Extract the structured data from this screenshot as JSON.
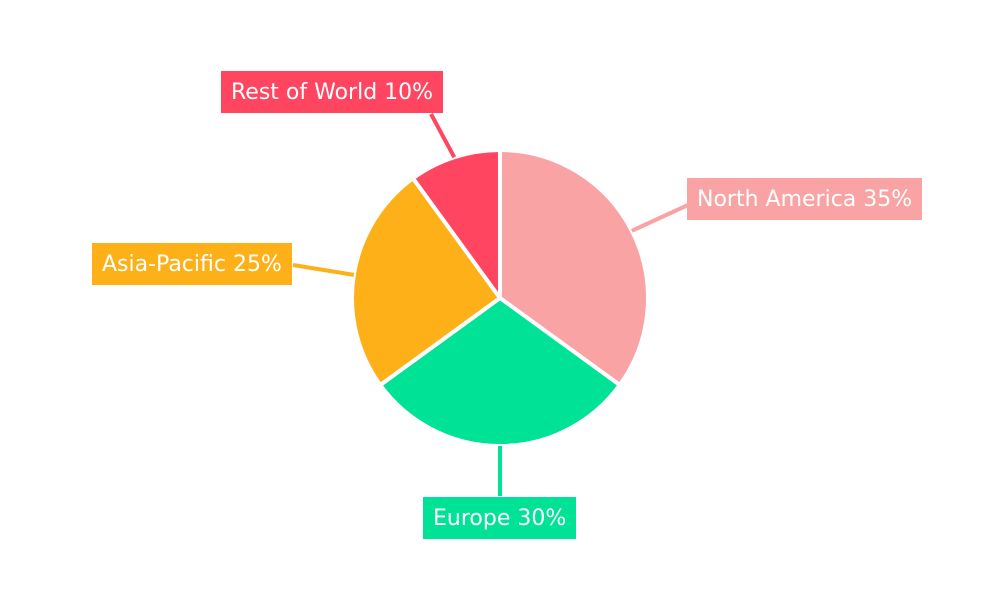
{
  "chart_data": {
    "type": "pie",
    "title": "",
    "categories": [
      "North America",
      "Europe",
      "Asia-Pacific",
      "Rest of World"
    ],
    "values": [
      35,
      30,
      25,
      10
    ],
    "unit": "%",
    "colors": [
      "#F9A3A4",
      "#00E396",
      "#FEB019",
      "#FF4560"
    ],
    "callout_labels": {
      "north_america": "North America 35%",
      "europe": "Europe 30%",
      "asia_pacific": "Asia-Pacific 25%",
      "rest_of_world": "Rest of World 10%"
    },
    "label_text_color": "#FFFFFF",
    "background": "#FFFFFF",
    "start_angle_deg": 0,
    "direction": "clockwise",
    "legend": "none",
    "slice_border_color": "#FFFFFF"
  }
}
